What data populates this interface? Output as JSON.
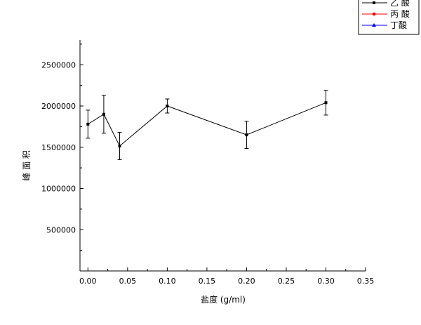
{
  "chart_data": {
    "type": "line",
    "xlabel": "盐度 (g/ml)",
    "ylabel": "峰 面 积",
    "xlim": [
      -0.01,
      0.35
    ],
    "ylim": [
      0,
      2800000
    ],
    "x_ticks": [
      0.0,
      0.05,
      0.1,
      0.15,
      0.2,
      0.25,
      0.3,
      0.35
    ],
    "x_tick_labels": [
      "0.00",
      "0.05",
      "0.10",
      "0.15",
      "0.20",
      "0.25",
      "0.30",
      "0.35"
    ],
    "y_ticks": [
      500000,
      1000000,
      1500000,
      2000000,
      2500000
    ],
    "y_tick_labels": [
      "500000",
      "1000000",
      "1500000",
      "2000000",
      "2500000"
    ],
    "grid": false,
    "legend_position": "top-right",
    "series": [
      {
        "name": "乙 酸",
        "color": "#000000",
        "marker": "square",
        "x": [
          0.0,
          0.02,
          0.04,
          0.1,
          0.2,
          0.3
        ],
        "y": [
          1780000,
          1900000,
          1515000,
          2000000,
          1650000,
          2040000
        ],
        "error": [
          170000,
          230000,
          165000,
          85000,
          165000,
          150000
        ]
      },
      {
        "name": "丙 酸",
        "color": "#ff0000",
        "marker": "circle",
        "x": [],
        "y": []
      },
      {
        "name": "丁酸",
        "color": "#0000ff",
        "marker": "triangle",
        "x": [],
        "y": []
      }
    ]
  }
}
